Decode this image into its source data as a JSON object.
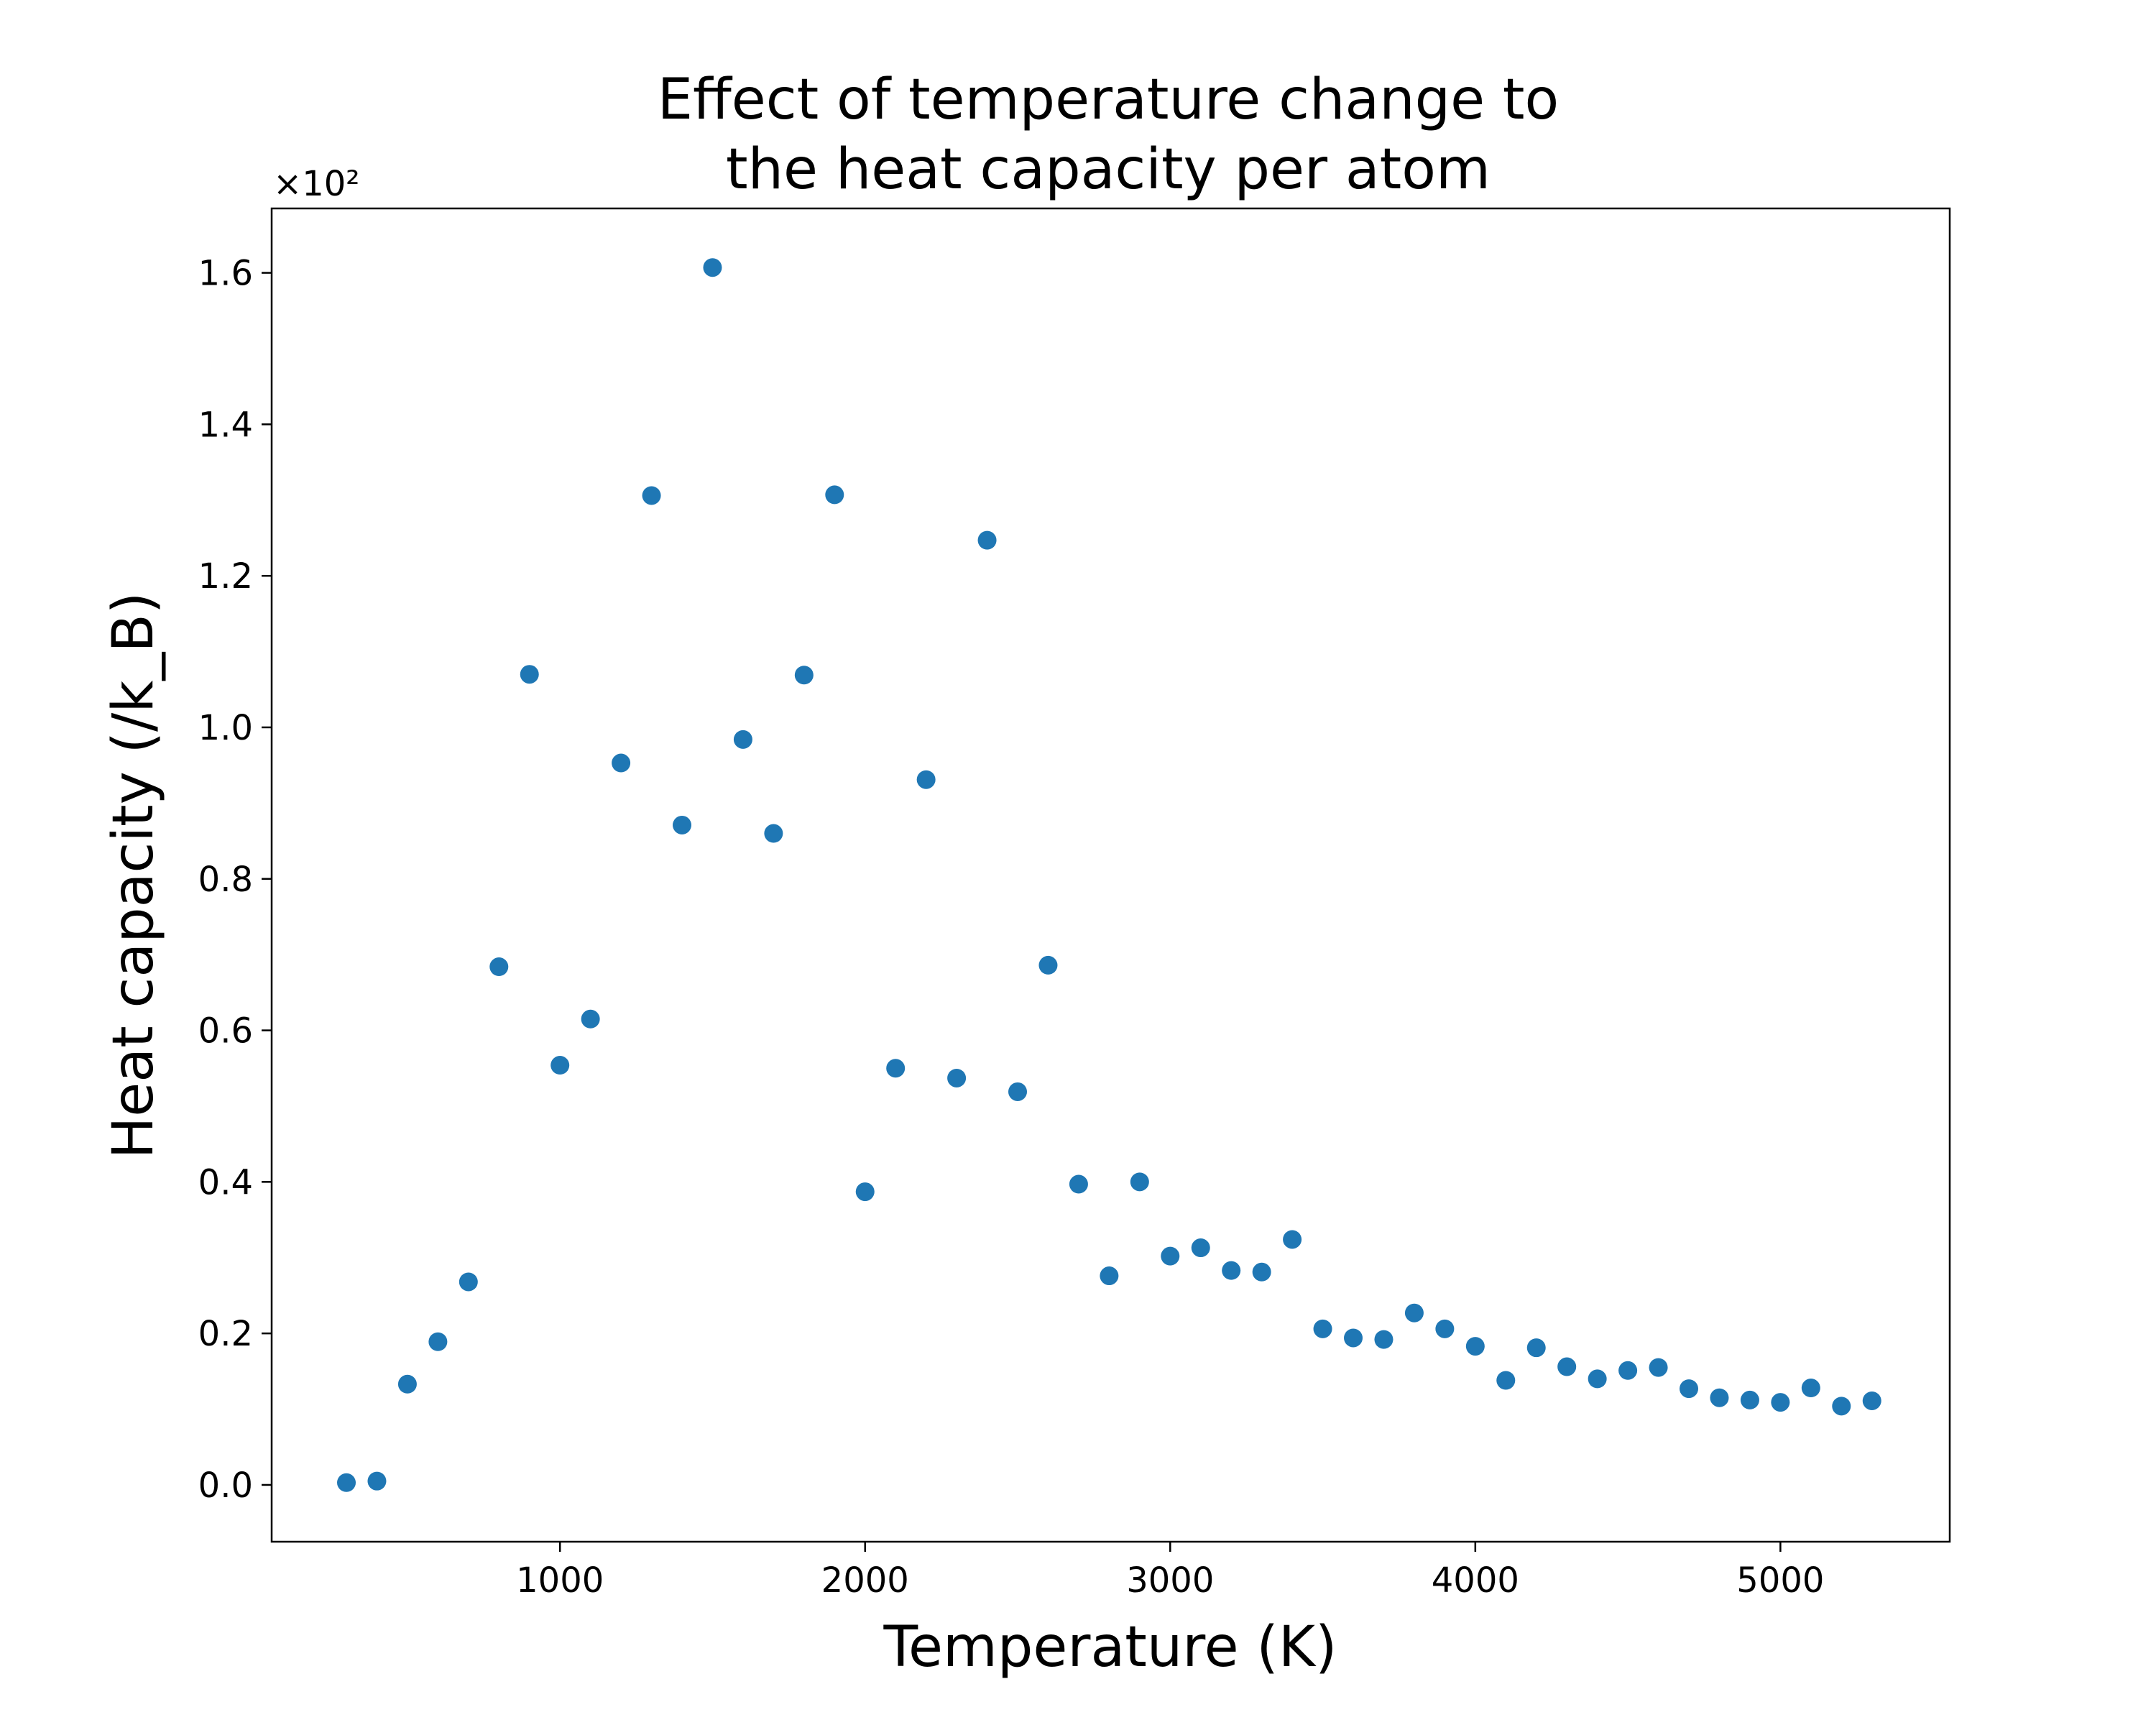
{
  "chart_data": {
    "type": "scatter",
    "title_lines": [
      "Effect of temperature change to",
      "the heat capacity per atom"
    ],
    "xlabel": "Temperature (K)",
    "ylabel": "Heat capacity (/k_B)",
    "y_offset_text": "×10²",
    "y_scale": 100,
    "xlim": [
      55,
      5555
    ],
    "ylim": [
      -0.075,
      1.685
    ],
    "x_ticks": [
      1000,
      2000,
      3000,
      4000,
      5000
    ],
    "x_tick_labels": [
      "1000",
      "2000",
      "3000",
      "4000",
      "5000"
    ],
    "y_ticks": [
      0.0,
      0.2,
      0.4,
      0.6,
      0.8,
      1.0,
      1.2,
      1.4,
      1.6
    ],
    "y_tick_labels": [
      "0.0",
      "0.2",
      "0.4",
      "0.6",
      "0.8",
      "1.0",
      "1.2",
      "1.4",
      "1.6"
    ],
    "grid": false,
    "marker_color": "#1f77b4",
    "series": [
      {
        "x": [
          300,
          400,
          500,
          600,
          700,
          800,
          900,
          1000,
          1100,
          1200,
          1300,
          1400,
          1500,
          1600,
          1700,
          1800,
          1900,
          2000,
          2100,
          2200,
          2300,
          2400,
          2500,
          2600,
          2700,
          2800,
          2900,
          3000,
          3100,
          3200,
          3300,
          3400,
          3500,
          3600,
          3700,
          3800,
          3900,
          4000,
          4100,
          4200,
          4300,
          4400,
          4500,
          4600,
          4700,
          4800,
          4900,
          5000,
          5100,
          5200,
          5300
        ],
        "y": [
          0.003,
          0.005,
          0.133,
          0.189,
          0.268,
          0.684,
          1.07,
          0.554,
          0.615,
          0.953,
          1.306,
          0.871,
          1.607,
          0.984,
          0.86,
          1.069,
          1.307,
          0.387,
          0.55,
          0.931,
          0.537,
          1.247,
          0.519,
          0.686,
          0.397,
          0.276,
          0.4,
          0.302,
          0.313,
          0.283,
          0.281,
          0.324,
          0.206,
          0.194,
          0.192,
          0.227,
          0.206,
          0.183,
          0.138,
          0.181,
          0.156,
          0.14,
          0.151,
          0.155,
          0.127,
          0.115,
          0.112,
          0.109,
          0.128,
          0.104,
          0.111
        ]
      }
    ]
  }
}
